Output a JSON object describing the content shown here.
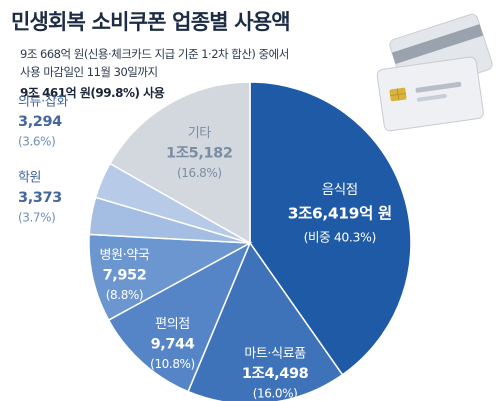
{
  "title": "민생회복 소비쿠폰 업종별 사용액",
  "subtitle": {
    "line1": "9조 668억 원(신용·체크카드 지급 기준 1·2차 합산) 중에서",
    "line2": "사용 마감일인 11월 30일까지",
    "line3": "9조 461억 원(99.8%) 사용"
  },
  "colors": {
    "restaurant": "#1f5aa6",
    "mart": "#3f73b9",
    "convenience": "#5585c6",
    "hospital": "#6c96cf",
    "academy": "#a4bde2",
    "clothing": "#b7cbe8",
    "etc": "#d3d8df",
    "light_text": "#ffffff",
    "dark_value": "#44689e",
    "dark_pct": "#6f8fb8",
    "etc_label": "#7b8da3"
  },
  "icons": [
    "credit-card-icon"
  ],
  "chart_data": {
    "type": "pie",
    "unit": "억 원",
    "slices": [
      {
        "name": "음식점",
        "value": 36419,
        "label": "3조6,419억 원",
        "pct_label": "(비중 40.3%)",
        "percent": 40.3
      },
      {
        "name": "마트·식료품",
        "value": 14498,
        "label": "1조4,498",
        "pct_label": "(16.0%)",
        "percent": 16.0
      },
      {
        "name": "편의점",
        "value": 9744,
        "label": "9,744",
        "pct_label": "(10.8%)",
        "percent": 10.8
      },
      {
        "name": "병원·약국",
        "value": 7952,
        "label": "7,952",
        "pct_label": "(8.8%)",
        "percent": 8.8
      },
      {
        "name": "학원",
        "value": 3373,
        "label": "3,373",
        "pct_label": "(3.7%)",
        "percent": 3.7
      },
      {
        "name": "의류·잡화",
        "value": 3294,
        "label": "3,294",
        "pct_label": "(3.6%)",
        "percent": 3.6
      },
      {
        "name": "기타",
        "value": 15182,
        "label": "1조5,182",
        "pct_label": "(16.8%)",
        "percent": 16.8
      }
    ]
  }
}
